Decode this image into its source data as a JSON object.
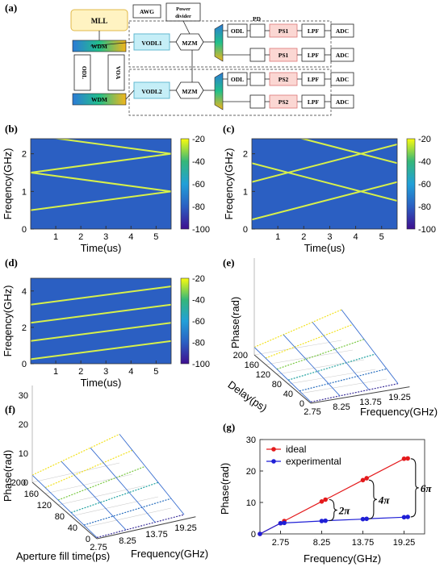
{
  "panels": {
    "a": "(a)",
    "b": "(b)",
    "c": "(c)",
    "d": "(d)",
    "e": "(e)",
    "f": "(f)",
    "g": "(g)"
  },
  "diagram": {
    "mll": "MLL",
    "awg": "AWG",
    "power_divider_1": "Power",
    "power_divider_2": "divider",
    "wdm": "WDM",
    "odl": "ODL",
    "voa": "VOA",
    "vodl1": "VODL1",
    "vodl2": "VODL2",
    "mzm": "MZM",
    "pd": "PD",
    "ps1": "PS1",
    "ps2": "PS2",
    "lpf": "LPF",
    "adc": "ADC"
  },
  "colorbar_ticks": [
    "-20",
    "-40",
    "-60",
    "-80",
    "-100"
  ],
  "colors": {
    "ideal": "#e41a1c",
    "experimental": "#1f1fd6",
    "spectrogram_bg": "#2b5fc2"
  },
  "chart_data": [
    {
      "id": "b",
      "type": "heatmap",
      "xlabel": "Time(us)",
      "ylabel": "Freqency(GHz)",
      "xticks": [
        "1",
        "2",
        "3",
        "4",
        "5"
      ],
      "yticks": [
        "0",
        "1",
        "2"
      ],
      "xlim": [
        0,
        5.6
      ],
      "ylim": [
        0,
        2.4
      ],
      "colorbar": {
        "ticks": [
          -20,
          -40,
          -60,
          -80,
          -100
        ]
      },
      "lines": [
        {
          "x": [
            0,
            5.6
          ],
          "y": [
            0.5,
            1.0
          ]
        },
        {
          "x": [
            0,
            5.6
          ],
          "y": [
            1.5,
            1.0
          ]
        },
        {
          "x": [
            0,
            5.6
          ],
          "y": [
            1.5,
            2.0
          ]
        },
        {
          "x": [
            0,
            5.6
          ],
          "y": [
            2.5,
            2.0
          ]
        }
      ]
    },
    {
      "id": "c",
      "type": "heatmap",
      "xlabel": "Time(us)",
      "ylabel": "Freqency(GHz)",
      "xticks": [
        "1",
        "2",
        "3",
        "4",
        "5"
      ],
      "yticks": [
        "0",
        "1",
        "2"
      ],
      "xlim": [
        0,
        5.6
      ],
      "ylim": [
        0,
        2.4
      ],
      "colorbar": {
        "ticks": [
          -20,
          -40,
          -60,
          -80,
          -100
        ]
      },
      "lines": [
        {
          "x": [
            0,
            5.6
          ],
          "y": [
            0.25,
            1.25
          ]
        },
        {
          "x": [
            0,
            5.6
          ],
          "y": [
            1.25,
            2.25
          ]
        },
        {
          "x": [
            0,
            5.6
          ],
          "y": [
            1.75,
            0.75
          ]
        },
        {
          "x": [
            0,
            5.6
          ],
          "y": [
            2.75,
            1.75
          ]
        }
      ]
    },
    {
      "id": "d",
      "type": "heatmap",
      "xlabel": "Time(us)",
      "ylabel": "Freqency(GHz)",
      "xticks": [
        "1",
        "2",
        "3",
        "4",
        "5"
      ],
      "yticks": [
        "0",
        "2",
        "4"
      ],
      "xlim": [
        0,
        5.6
      ],
      "ylim": [
        0,
        4.7
      ],
      "colorbar": {
        "ticks": [
          -20,
          -40,
          -60,
          -80,
          -100
        ]
      },
      "lines": [
        {
          "x": [
            0,
            5.6
          ],
          "y": [
            0.25,
            1.25
          ]
        },
        {
          "x": [
            0,
            5.6
          ],
          "y": [
            1.25,
            2.25
          ]
        },
        {
          "x": [
            0,
            5.6
          ],
          "y": [
            2.25,
            3.25
          ]
        },
        {
          "x": [
            0,
            5.6
          ],
          "y": [
            3.25,
            4.25
          ]
        }
      ]
    },
    {
      "id": "e",
      "type": "surface",
      "zlabel": "Phase(rad)",
      "ylabel": "Delay(ps)",
      "xlabel": "Frequency(GHz)",
      "delay_ticks": [
        "0",
        "40",
        "80",
        "120",
        "160",
        "200"
      ],
      "freq_ticks": [
        "2.75",
        "8.25",
        "13.75",
        "19.25"
      ]
    },
    {
      "id": "f",
      "type": "surface",
      "zlabel": "Phase(rad)",
      "ylabel": "Aperture fill time(ps)",
      "xlabel": "Frequency(GHz)",
      "z_ticks": [
        "0",
        "10",
        "20",
        "30"
      ],
      "delay_ticks": [
        "0",
        "40",
        "80",
        "120",
        "160",
        "200"
      ],
      "freq_ticks": [
        "2.75",
        "8.25",
        "13.75",
        "19.25"
      ]
    },
    {
      "id": "g",
      "type": "line",
      "xlabel": "Frequency(GHz)",
      "ylabel": "Phase(rad)",
      "xticks": [
        "2.75",
        "8.25",
        "13.75",
        "19.25"
      ],
      "yticks": [
        "0",
        "10",
        "20",
        "30"
      ],
      "xlim": [
        0,
        22
      ],
      "ylim": [
        0,
        30
      ],
      "series": [
        {
          "name": "ideal",
          "x": [
            0,
            2.75,
            3.25,
            8.25,
            8.75,
            13.75,
            14.25,
            19.25,
            19.75
          ],
          "y": [
            0,
            3.4,
            4.1,
            10.3,
            10.9,
            17.1,
            17.7,
            23.9,
            24.0
          ]
        },
        {
          "name": "experimental",
          "x": [
            0,
            2.75,
            3.25,
            8.25,
            8.75,
            13.75,
            14.25,
            19.25,
            19.75
          ],
          "y": [
            0,
            3.4,
            3.5,
            4.1,
            4.2,
            4.7,
            4.8,
            5.3,
            5.4
          ]
        }
      ],
      "annotations": [
        "2π",
        "4π",
        "6π"
      ]
    }
  ]
}
